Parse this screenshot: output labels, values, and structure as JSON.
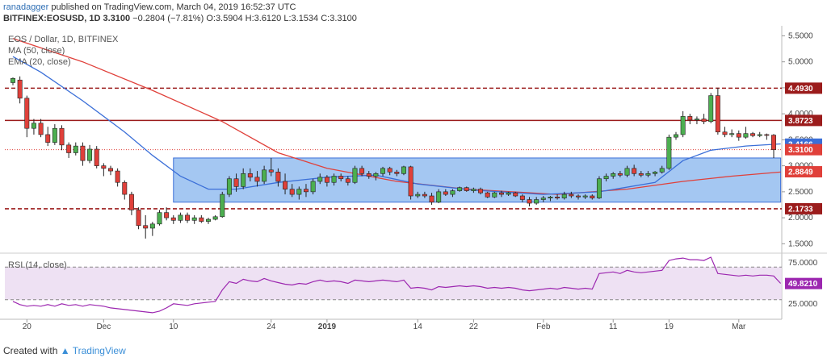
{
  "header": {
    "author": "ranadagger",
    "published": "published on TradingView.com, March 04, 2019 16:52:37 UTC",
    "symbol": "BITFINEX:EOSUSD, 1D",
    "last": "3.3100",
    "change": "−0.2804 (−7.81%)",
    "ohlc": "O:3.5904 H:3.6120 L:3.1534 C:3.3100"
  },
  "footer": {
    "created_with": "Created with",
    "brand": "TradingView"
  },
  "colors": {
    "up": "#4caf50",
    "down": "#e0403a",
    "candle_outline": "#222222",
    "ma": "#e0403a",
    "ema": "#3b6fd8",
    "box_fill": "#86b4ee",
    "box_border": "#3b6fd8",
    "resistance": "#9b1c1c",
    "rsi": "#9c27b0",
    "rsi_band": "#ead9f0"
  },
  "chart_data": [
    {
      "type": "candlestick",
      "title": "EOS / Dollar, 1D, BITFINEX",
      "legend": [
        "MA (50, close)",
        "EMA (20, close)"
      ],
      "ylim": [
        1.35,
        5.6
      ],
      "yticks": [
        1.5,
        2.0,
        2.5,
        3.0,
        3.5,
        4.0,
        4.5,
        5.0,
        5.5
      ],
      "ytick_labels": [
        "1.5000",
        "2.0000",
        "2.5000",
        "3.0000",
        "3.5000",
        "4.0000",
        "4.5000",
        "5.0000",
        "5.5000"
      ],
      "x_labels": [
        {
          "label": "20",
          "index": 2
        },
        {
          "label": "Dec",
          "index": 13
        },
        {
          "label": "10",
          "index": 23
        },
        {
          "label": "24",
          "index": 37
        },
        {
          "label": "2019",
          "index": 45
        },
        {
          "label": "14",
          "index": 58
        },
        {
          "label": "22",
          "index": 66
        },
        {
          "label": "Feb",
          "index": 76
        },
        {
          "label": "11",
          "index": 86
        },
        {
          "label": "19",
          "index": 94
        },
        {
          "label": "Mar",
          "index": 104
        }
      ],
      "candles": [
        {
          "o": 4.6,
          "h": 4.7,
          "l": 4.55,
          "c": 4.68
        },
        {
          "o": 4.65,
          "h": 4.72,
          "l": 4.2,
          "c": 4.3
        },
        {
          "o": 4.3,
          "h": 4.35,
          "l": 3.55,
          "c": 3.72
        },
        {
          "o": 3.72,
          "h": 3.9,
          "l": 3.6,
          "c": 3.82
        },
        {
          "o": 3.82,
          "h": 3.9,
          "l": 3.55,
          "c": 3.6
        },
        {
          "o": 3.6,
          "h": 3.75,
          "l": 3.38,
          "c": 3.45
        },
        {
          "o": 3.45,
          "h": 3.8,
          "l": 3.4,
          "c": 3.72
        },
        {
          "o": 3.72,
          "h": 3.78,
          "l": 3.3,
          "c": 3.4
        },
        {
          "o": 3.4,
          "h": 3.45,
          "l": 3.15,
          "c": 3.25
        },
        {
          "o": 3.25,
          "h": 3.45,
          "l": 3.2,
          "c": 3.38
        },
        {
          "o": 3.38,
          "h": 3.45,
          "l": 3.0,
          "c": 3.1
        },
        {
          "o": 3.1,
          "h": 3.4,
          "l": 3.05,
          "c": 3.32
        },
        {
          "o": 3.32,
          "h": 3.38,
          "l": 2.95,
          "c": 3.0
        },
        {
          "o": 3.0,
          "h": 3.05,
          "l": 2.8,
          "c": 2.95
        },
        {
          "o": 2.95,
          "h": 3.0,
          "l": 2.82,
          "c": 2.9
        },
        {
          "o": 2.9,
          "h": 2.95,
          "l": 2.6,
          "c": 2.68
        },
        {
          "o": 2.68,
          "h": 2.72,
          "l": 2.35,
          "c": 2.45
        },
        {
          "o": 2.45,
          "h": 2.5,
          "l": 2.05,
          "c": 2.15
        },
        {
          "o": 2.15,
          "h": 2.2,
          "l": 1.78,
          "c": 1.85
        },
        {
          "o": 1.85,
          "h": 2.05,
          "l": 1.6,
          "c": 1.8
        },
        {
          "o": 1.8,
          "h": 1.92,
          "l": 1.65,
          "c": 1.88
        },
        {
          "o": 1.88,
          "h": 2.15,
          "l": 1.85,
          "c": 2.1
        },
        {
          "o": 2.1,
          "h": 2.2,
          "l": 1.95,
          "c": 2.0
        },
        {
          "o": 2.0,
          "h": 2.05,
          "l": 1.88,
          "c": 1.95
        },
        {
          "o": 1.95,
          "h": 2.1,
          "l": 1.9,
          "c": 2.05
        },
        {
          "o": 2.05,
          "h": 2.1,
          "l": 1.9,
          "c": 1.95
        },
        {
          "o": 1.95,
          "h": 2.05,
          "l": 1.88,
          "c": 2.0
        },
        {
          "o": 2.0,
          "h": 2.05,
          "l": 1.9,
          "c": 1.93
        },
        {
          "o": 1.93,
          "h": 2.0,
          "l": 1.88,
          "c": 1.97
        },
        {
          "o": 1.97,
          "h": 2.05,
          "l": 1.95,
          "c": 2.02
        },
        {
          "o": 2.02,
          "h": 2.5,
          "l": 2.0,
          "c": 2.45
        },
        {
          "o": 2.45,
          "h": 2.8,
          "l": 2.4,
          "c": 2.75
        },
        {
          "o": 2.75,
          "h": 2.85,
          "l": 2.5,
          "c": 2.6
        },
        {
          "o": 2.6,
          "h": 2.95,
          "l": 2.55,
          "c": 2.85
        },
        {
          "o": 2.85,
          "h": 2.95,
          "l": 2.7,
          "c": 2.78
        },
        {
          "o": 2.78,
          "h": 2.9,
          "l": 2.6,
          "c": 2.7
        },
        {
          "o": 2.7,
          "h": 3.0,
          "l": 2.65,
          "c": 2.92
        },
        {
          "o": 2.92,
          "h": 3.15,
          "l": 2.8,
          "c": 2.88
        },
        {
          "o": 2.88,
          "h": 2.95,
          "l": 2.6,
          "c": 2.7
        },
        {
          "o": 2.7,
          "h": 2.85,
          "l": 2.45,
          "c": 2.55
        },
        {
          "o": 2.55,
          "h": 2.65,
          "l": 2.4,
          "c": 2.45
        },
        {
          "o": 2.45,
          "h": 2.6,
          "l": 2.35,
          "c": 2.55
        },
        {
          "o": 2.55,
          "h": 2.65,
          "l": 2.4,
          "c": 2.5
        },
        {
          "o": 2.5,
          "h": 2.75,
          "l": 2.45,
          "c": 2.7
        },
        {
          "o": 2.7,
          "h": 2.85,
          "l": 2.65,
          "c": 2.78
        },
        {
          "o": 2.78,
          "h": 2.82,
          "l": 2.6,
          "c": 2.68
        },
        {
          "o": 2.68,
          "h": 2.85,
          "l": 2.62,
          "c": 2.8
        },
        {
          "o": 2.8,
          "h": 2.85,
          "l": 2.7,
          "c": 2.75
        },
        {
          "o": 2.75,
          "h": 2.8,
          "l": 2.62,
          "c": 2.68
        },
        {
          "o": 2.68,
          "h": 3.0,
          "l": 2.65,
          "c": 2.95
        },
        {
          "o": 2.95,
          "h": 3.0,
          "l": 2.8,
          "c": 2.85
        },
        {
          "o": 2.85,
          "h": 2.9,
          "l": 2.75,
          "c": 2.8
        },
        {
          "o": 2.8,
          "h": 2.88,
          "l": 2.72,
          "c": 2.85
        },
        {
          "o": 2.85,
          "h": 2.98,
          "l": 2.8,
          "c": 2.95
        },
        {
          "o": 2.95,
          "h": 2.98,
          "l": 2.82,
          "c": 2.88
        },
        {
          "o": 2.88,
          "h": 2.92,
          "l": 2.8,
          "c": 2.85
        },
        {
          "o": 2.85,
          "h": 3.0,
          "l": 2.82,
          "c": 2.98
        },
        {
          "o": 2.98,
          "h": 3.0,
          "l": 2.35,
          "c": 2.42
        },
        {
          "o": 2.42,
          "h": 2.5,
          "l": 2.38,
          "c": 2.45
        },
        {
          "o": 2.45,
          "h": 2.5,
          "l": 2.38,
          "c": 2.42
        },
        {
          "o": 2.42,
          "h": 2.48,
          "l": 2.25,
          "c": 2.3
        },
        {
          "o": 2.3,
          "h": 2.55,
          "l": 2.28,
          "c": 2.5
        },
        {
          "o": 2.5,
          "h": 2.55,
          "l": 2.42,
          "c": 2.45
        },
        {
          "o": 2.45,
          "h": 2.55,
          "l": 2.4,
          "c": 2.52
        },
        {
          "o": 2.52,
          "h": 2.6,
          "l": 2.5,
          "c": 2.58
        },
        {
          "o": 2.58,
          "h": 2.6,
          "l": 2.5,
          "c": 2.52
        },
        {
          "o": 2.52,
          "h": 2.58,
          "l": 2.48,
          "c": 2.55
        },
        {
          "o": 2.55,
          "h": 2.58,
          "l": 2.45,
          "c": 2.48
        },
        {
          "o": 2.48,
          "h": 2.5,
          "l": 2.38,
          "c": 2.4
        },
        {
          "o": 2.4,
          "h": 2.5,
          "l": 2.38,
          "c": 2.48
        },
        {
          "o": 2.48,
          "h": 2.52,
          "l": 2.4,
          "c": 2.45
        },
        {
          "o": 2.45,
          "h": 2.5,
          "l": 2.42,
          "c": 2.48
        },
        {
          "o": 2.48,
          "h": 2.5,
          "l": 2.4,
          "c": 2.42
        },
        {
          "o": 2.42,
          "h": 2.45,
          "l": 2.3,
          "c": 2.35
        },
        {
          "o": 2.35,
          "h": 2.4,
          "l": 2.22,
          "c": 2.28
        },
        {
          "o": 2.28,
          "h": 2.4,
          "l": 2.25,
          "c": 2.35
        },
        {
          "o": 2.35,
          "h": 2.42,
          "l": 2.3,
          "c": 2.38
        },
        {
          "o": 2.38,
          "h": 2.42,
          "l": 2.32,
          "c": 2.4
        },
        {
          "o": 2.4,
          "h": 2.45,
          "l": 2.35,
          "c": 2.38
        },
        {
          "o": 2.38,
          "h": 2.5,
          "l": 2.35,
          "c": 2.45
        },
        {
          "o": 2.45,
          "h": 2.5,
          "l": 2.38,
          "c": 2.42
        },
        {
          "o": 2.42,
          "h": 2.45,
          "l": 2.35,
          "c": 2.4
        },
        {
          "o": 2.4,
          "h": 2.45,
          "l": 2.36,
          "c": 2.42
        },
        {
          "o": 2.42,
          "h": 2.45,
          "l": 2.35,
          "c": 2.38
        },
        {
          "o": 2.38,
          "h": 2.8,
          "l": 2.36,
          "c": 2.75
        },
        {
          "o": 2.75,
          "h": 2.85,
          "l": 2.7,
          "c": 2.8
        },
        {
          "o": 2.8,
          "h": 2.88,
          "l": 2.75,
          "c": 2.85
        },
        {
          "o": 2.85,
          "h": 2.9,
          "l": 2.78,
          "c": 2.82
        },
        {
          "o": 2.82,
          "h": 3.0,
          "l": 2.78,
          "c": 2.95
        },
        {
          "o": 2.95,
          "h": 3.02,
          "l": 2.8,
          "c": 2.85
        },
        {
          "o": 2.85,
          "h": 2.9,
          "l": 2.78,
          "c": 2.82
        },
        {
          "o": 2.82,
          "h": 2.9,
          "l": 2.78,
          "c": 2.85
        },
        {
          "o": 2.85,
          "h": 2.9,
          "l": 2.8,
          "c": 2.88
        },
        {
          "o": 2.88,
          "h": 3.0,
          "l": 2.85,
          "c": 2.95
        },
        {
          "o": 2.95,
          "h": 3.6,
          "l": 2.92,
          "c": 3.55
        },
        {
          "o": 3.55,
          "h": 3.65,
          "l": 3.5,
          "c": 3.6
        },
        {
          "o": 3.6,
          "h": 4.05,
          "l": 3.55,
          "c": 3.95
        },
        {
          "o": 3.95,
          "h": 4.0,
          "l": 3.8,
          "c": 3.88
        },
        {
          "o": 3.88,
          "h": 3.95,
          "l": 3.8,
          "c": 3.9
        },
        {
          "o": 3.9,
          "h": 4.0,
          "l": 3.8,
          "c": 3.85
        },
        {
          "o": 3.85,
          "h": 4.4,
          "l": 3.82,
          "c": 4.35
        },
        {
          "o": 4.35,
          "h": 4.5,
          "l": 3.6,
          "c": 3.65
        },
        {
          "o": 3.65,
          "h": 3.75,
          "l": 3.55,
          "c": 3.6
        },
        {
          "o": 3.6,
          "h": 3.7,
          "l": 3.55,
          "c": 3.62
        },
        {
          "o": 3.62,
          "h": 3.68,
          "l": 3.48,
          "c": 3.55
        },
        {
          "o": 3.55,
          "h": 3.75,
          "l": 3.52,
          "c": 3.62
        },
        {
          "o": 3.62,
          "h": 3.65,
          "l": 3.55,
          "c": 3.58
        },
        {
          "o": 3.58,
          "h": 3.65,
          "l": 3.55,
          "c": 3.6
        },
        {
          "o": 3.6,
          "h": 3.62,
          "l": 3.5,
          "c": 3.59
        },
        {
          "o": 3.59,
          "h": 3.61,
          "l": 3.15,
          "c": 3.31
        }
      ],
      "ma50_points": [
        [
          0,
          5.45
        ],
        [
          10,
          5.0
        ],
        [
          20,
          4.45
        ],
        [
          30,
          3.85
        ],
        [
          38,
          3.25
        ],
        [
          45,
          2.95
        ],
        [
          55,
          2.7
        ],
        [
          65,
          2.55
        ],
        [
          78,
          2.45
        ],
        [
          88,
          2.55
        ],
        [
          96,
          2.7
        ],
        [
          103,
          2.8
        ],
        [
          110,
          2.88
        ]
      ],
      "ema20_points": [
        [
          0,
          5.1
        ],
        [
          4,
          4.8
        ],
        [
          10,
          4.25
        ],
        [
          16,
          3.65
        ],
        [
          20,
          3.2
        ],
        [
          24,
          2.8
        ],
        [
          28,
          2.55
        ],
        [
          32,
          2.55
        ],
        [
          38,
          2.68
        ],
        [
          45,
          2.78
        ],
        [
          52,
          2.82
        ],
        [
          58,
          2.65
        ],
        [
          66,
          2.53
        ],
        [
          76,
          2.45
        ],
        [
          84,
          2.5
        ],
        [
          92,
          2.68
        ],
        [
          96,
          3.1
        ],
        [
          100,
          3.3
        ],
        [
          105,
          3.38
        ],
        [
          110,
          3.42
        ]
      ],
      "box": {
        "x0": 23,
        "x1": 110,
        "y0": 2.3,
        "y1": 3.15
      },
      "lines": [
        {
          "value": 4.493,
          "label": "4.4930",
          "style": "dashed"
        },
        {
          "value": 3.8723,
          "label": "3.8723",
          "style": "solid"
        },
        {
          "value": 2.1733,
          "label": "2.1733",
          "style": "dashed"
        },
        {
          "value": 3.31,
          "label": "",
          "style": "dotted"
        }
      ],
      "price_labels": [
        {
          "value": 4.493,
          "label": "4.4930",
          "color": "#9b1c1c"
        },
        {
          "value": 3.8723,
          "label": "3.8723",
          "color": "#9b1c1c"
        },
        {
          "value": 3.4166,
          "label": "3.4166",
          "color": "#3b6fd8"
        },
        {
          "value": 3.31,
          "label": "3.3100",
          "color": "#e0403a"
        },
        {
          "value": 2.8849,
          "label": "2.8849",
          "color": "#e0403a"
        },
        {
          "value": 2.1733,
          "label": "2.1733",
          "color": "#9b1c1c"
        }
      ]
    },
    {
      "type": "line",
      "title": "RSI (14, close)",
      "ylim": [
        10,
        85
      ],
      "yticks": [
        25,
        75
      ],
      "ytick_labels": [
        "25.0000",
        "75.0000"
      ],
      "band": [
        30,
        70
      ],
      "last_label": "49.8210",
      "last_value": 49.821,
      "values": [
        28,
        24,
        22,
        23,
        22,
        24,
        22,
        25,
        23,
        24,
        22,
        24,
        23,
        22,
        20,
        19,
        18,
        17,
        16,
        15,
        14,
        16,
        20,
        25,
        24,
        23,
        25,
        26,
        27,
        28,
        42,
        52,
        50,
        55,
        53,
        52,
        56,
        53,
        51,
        49,
        48,
        50,
        49,
        52,
        54,
        52,
        53,
        52,
        50,
        54,
        53,
        52,
        53,
        54,
        53,
        52,
        54,
        44,
        45,
        44,
        42,
        46,
        45,
        46,
        47,
        46,
        47,
        46,
        44,
        45,
        44,
        45,
        44,
        42,
        41,
        42,
        43,
        44,
        43,
        45,
        44,
        43,
        44,
        43,
        62,
        63,
        64,
        62,
        66,
        64,
        63,
        64,
        65,
        66,
        78,
        80,
        81,
        79,
        79,
        78,
        82,
        62,
        61,
        60,
        59,
        60,
        59,
        60,
        60,
        59,
        50
      ]
    }
  ]
}
